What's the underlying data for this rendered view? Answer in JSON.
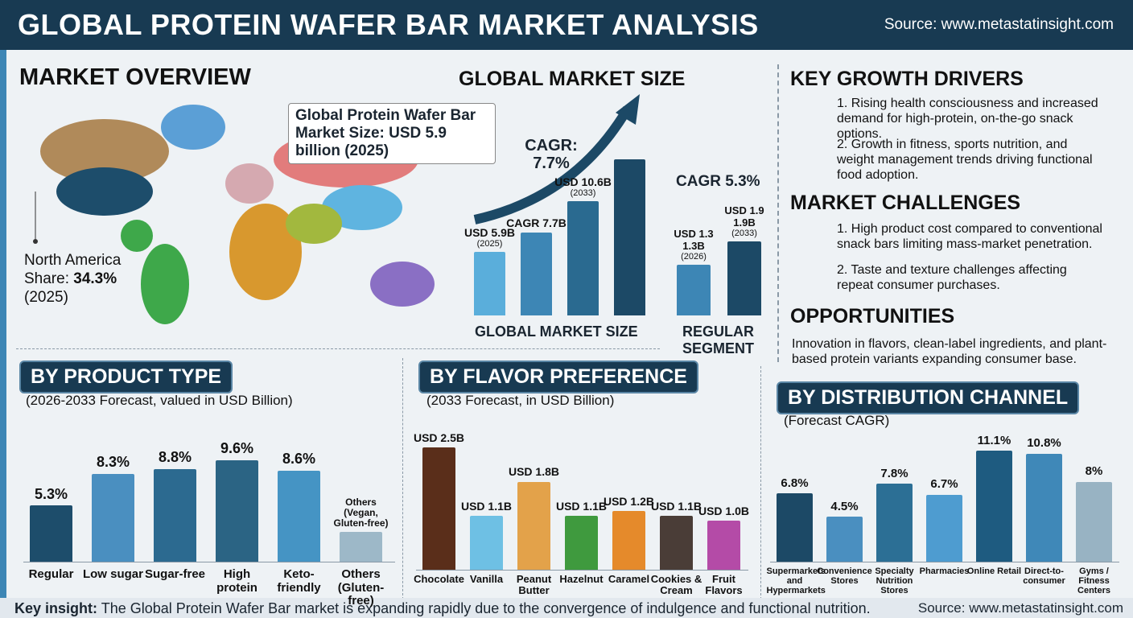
{
  "header": {
    "title": "GLOBAL PROTEIN WAFER BAR MARKET ANALYSIS",
    "source": "Source: www.metastatinsight.com"
  },
  "overview": {
    "heading": "MARKET OVERVIEW",
    "callout": "Global Protein Wafer Bar Market Size: USD 5.9 billion (2025)",
    "region": "North America",
    "share_label": "Share:",
    "share": "34.3%",
    "year": "(2025)"
  },
  "drivers": {
    "heading": "KEY GROWTH DRIVERS",
    "items": [
      "1. Rising health consciousness and increased demand for high-protein, on-the-go snack options.",
      "2. Growth in fitness, sports nutrition, and weight management trends driving functional food adoption."
    ]
  },
  "challenges": {
    "heading": "MARKET CHALLENGES",
    "items": [
      "1. High product cost compared to conventional snack bars limiting mass-market penetration.",
      "2. Taste and texture challenges affecting repeat consumer purchases."
    ]
  },
  "opportunities": {
    "heading": "OPPORTUNITIES",
    "text": "Innovation in flavors, clean-label ingredients, and plant-based protein variants expanding consumer base."
  },
  "footer": {
    "insight_label": "Key insight:",
    "insight": "The Global Protein Wafer Bar market is expanding rapidly due to the convergence of indulgence and functional nutrition.",
    "source": "Source: www.metastatinsight.com"
  },
  "chart_data": [
    {
      "type": "bar",
      "title": "GLOBAL MARKET SIZE",
      "xlabel": "GLOBAL MARKET SIZE",
      "annotation": "CAGR: 7.7%",
      "categories": [
        "(2025)",
        null,
        "(2033)",
        null
      ],
      "values": [
        5.9,
        7.7,
        10.6,
        14.5
      ],
      "value_labels": [
        "USD 5.9B",
        "CAGR 7.7B",
        "USD 10.6B",
        null
      ],
      "colors": [
        "#5aaedb",
        "#3d86b5",
        "#2a6a90",
        "#1c4966"
      ]
    },
    {
      "type": "bar",
      "title": "REGULAR SEGMENT",
      "annotation": "CAGR 5.3%",
      "categories": [
        "(2026)",
        "(2033)"
      ],
      "values": [
        1.3,
        1.9
      ],
      "value_labels": [
        "USD 1.3 1.3B",
        "USD 1.9 1.9B"
      ],
      "colors": [
        "#3d86b5",
        "#1c4966"
      ]
    },
    {
      "type": "bar",
      "title": "BY PRODUCT TYPE",
      "subtitle": "(2026-2033 Forecast, valued in USD Billion)",
      "categories": [
        "Regular",
        "Low sugar",
        "Sugar-free",
        "High protein",
        "Keto-friendly",
        "Others (Gluten-free)"
      ],
      "values": [
        5.3,
        8.3,
        8.8,
        9.6,
        8.6,
        2.8
      ],
      "value_labels": [
        "5.3%",
        "8.3%",
        "8.8%",
        "9.6%",
        "8.6%",
        null
      ],
      "others_note": "Others (Vegan, Gluten-free)",
      "colors": [
        "#1d4d6b",
        "#4a8fc0",
        "#2c6a90",
        "#2b6484",
        "#4594c4",
        "#9db8c8"
      ]
    },
    {
      "type": "bar",
      "title": "BY FLAVOR PREFERENCE",
      "subtitle": "(2033 Forecast, in USD Billion)",
      "categories": [
        "Chocolate",
        "Vanilla",
        "Peanut Butter",
        "Hazelnut",
        "Caramel",
        "Cookies & Cream",
        "Fruit Flavors"
      ],
      "values": [
        2.5,
        1.1,
        1.8,
        1.1,
        1.2,
        1.1,
        1.0
      ],
      "value_labels": [
        "USD 2.5B",
        "USD 1.1B",
        "USD 1.8B",
        "USD 1.1B",
        "USD 1.2B",
        "USD 1.1B",
        "USD 1.0B"
      ],
      "colors": [
        "#5a2e1a",
        "#6ec0e4",
        "#e3a24a",
        "#3f9a3e",
        "#e58a2b",
        "#4a3d37",
        "#b44ba7"
      ]
    },
    {
      "type": "bar",
      "title": "BY DISTRIBUTION CHANNEL",
      "subtitle": "(Forecast CAGR)",
      "categories": [
        "Supermarkets and Hypermarkets",
        "Convenience Stores",
        "Specialty Nutrition Stores",
        "Pharmacies",
        "Online Retail",
        "Direct-to-consumer",
        "Gyms / Fitness Centers"
      ],
      "values": [
        6.8,
        4.5,
        7.8,
        6.7,
        11.1,
        10.8,
        8
      ],
      "value_labels": [
        "6.8%",
        "4.5%",
        "7.8%",
        "6.7%",
        "11.1%",
        "10.8%",
        "8%"
      ],
      "colors": [
        "#1c4966",
        "#4a8fc0",
        "#2c6f95",
        "#4e9cd0",
        "#1e5b80",
        "#3f88b8",
        "#98b3c3"
      ]
    }
  ]
}
